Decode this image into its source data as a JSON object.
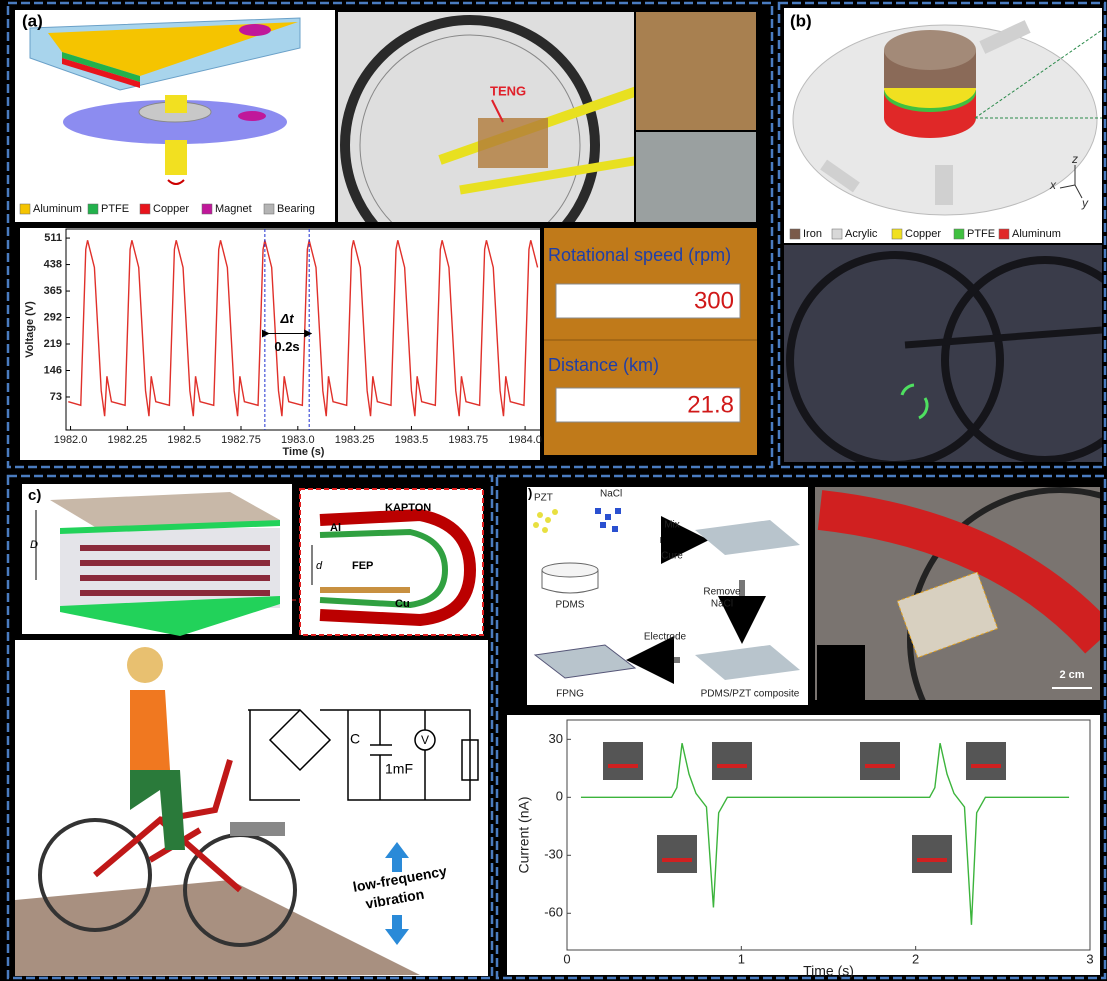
{
  "chart_data": [
    {
      "type": "line",
      "xlabel": "Time (s)",
      "ylabel": "Voltage (V)",
      "color": "#e0302a",
      "x": [
        1981.99,
        1982.045,
        1982.067,
        1982.075,
        1982.105,
        1982.135,
        1982.15,
        1982.16,
        1982.18,
        1982.24,
        1982.262,
        1982.27,
        1982.3,
        1982.33,
        1982.345,
        1982.355,
        1982.375,
        1982.435,
        1982.457,
        1982.465,
        1982.495,
        1982.525,
        1982.54,
        1982.55,
        1982.57,
        1982.63,
        1982.652,
        1982.66,
        1982.69,
        1982.72,
        1982.735,
        1982.745,
        1982.765,
        1982.825,
        1982.847,
        1982.855,
        1982.885,
        1982.915,
        1982.93,
        1982.94,
        1982.96,
        1983.02,
        1983.042,
        1983.05,
        1983.08,
        1983.11,
        1983.125,
        1983.135,
        1983.155,
        1983.215,
        1983.237,
        1983.245,
        1983.275,
        1983.305,
        1983.32,
        1983.33,
        1983.35,
        1983.41,
        1983.432,
        1983.44,
        1983.47,
        1983.5,
        1983.515,
        1983.525,
        1983.545,
        1983.605,
        1983.627,
        1983.635,
        1983.665,
        1983.695,
        1983.71,
        1983.72,
        1983.74,
        1983.8,
        1983.822,
        1983.83,
        1983.86,
        1983.89,
        1983.905,
        1983.915,
        1983.935,
        1983.995,
        1984.017,
        1984.025,
        1984.055
      ],
      "values": [
        60,
        50,
        480,
        505,
        430,
        90,
        20,
        130,
        60,
        50,
        480,
        505,
        430,
        90,
        20,
        130,
        60,
        50,
        480,
        505,
        430,
        90,
        20,
        130,
        60,
        50,
        480,
        505,
        430,
        90,
        20,
        130,
        60,
        50,
        480,
        505,
        430,
        90,
        20,
        130,
        60,
        50,
        480,
        505,
        430,
        90,
        20,
        130,
        60,
        50,
        480,
        505,
        430,
        90,
        20,
        130,
        60,
        50,
        480,
        505,
        430,
        90,
        20,
        130,
        60,
        50,
        480,
        505,
        430,
        90,
        20,
        130,
        60,
        50,
        480,
        505,
        430,
        90,
        20,
        130,
        60,
        50,
        480,
        505,
        430
      ],
      "xlim": [
        1981.98,
        1984.07
      ],
      "ylim": [
        -18,
        536
      ],
      "xticks": [
        {
          "value": 1982,
          "label": "1982.0"
        },
        1982.25,
        1982.5,
        1982.75,
        {
          "value": 1983,
          "label": "1983.0"
        },
        1983.25,
        1983.5,
        1983.75,
        {
          "value": 1984,
          "label": "1984.0"
        }
      ],
      "yticks": [
        73,
        146,
        219,
        292,
        365,
        438,
        511
      ],
      "markers": [
        1982.855,
        1983.05
      ],
      "annotations": [
        "Δt",
        "0.2s"
      ]
    },
    {
      "type": "line",
      "xlabel": "Time (s)",
      "ylabel": "Current (nA)",
      "color": "#3cb43c",
      "x": [
        0.08,
        0.6,
        0.63,
        0.66,
        0.7,
        0.74,
        0.8,
        0.84,
        0.87,
        0.92,
        2.08,
        2.11,
        2.14,
        2.18,
        2.22,
        2.28,
        2.32,
        2.35,
        2.4,
        2.88
      ],
      "values": [
        0,
        0,
        5,
        28,
        12,
        2,
        -5,
        -57,
        -8,
        0,
        0,
        5,
        28,
        12,
        2,
        -5,
        -66,
        -8,
        0,
        0
      ],
      "xlim": [
        0,
        3
      ],
      "ylim": [
        -79,
        40
      ],
      "xticks": [
        0,
        1,
        2,
        3
      ],
      "yticks": [
        -60,
        -30,
        0,
        30
      ]
    }
  ],
  "panel_a": {
    "label": "(a)",
    "legend": [
      {
        "name": "Aluminum",
        "color": "#f5c400"
      },
      {
        "name": "PTFE",
        "color": "#22b14c"
      },
      {
        "name": "Copper",
        "color": "#e8141c"
      },
      {
        "name": "Magnet",
        "color": "#c0189a"
      },
      {
        "name": "Bearing",
        "color": "#b4b4b4"
      }
    ],
    "photo_label": "TENG",
    "display": {
      "speed_label": "Rotational speed (rpm)",
      "speed": 300,
      "distance_label": "Distance (km)",
      "distance": 21.8
    }
  },
  "panel_b": {
    "label": "(b)",
    "axes": [
      "z",
      "x",
      "y"
    ],
    "legend": [
      {
        "name": "Iron",
        "color": "#7a5a4a"
      },
      {
        "name": "Acrylic",
        "color": "#d8d8d8"
      },
      {
        "name": "Copper",
        "color": "#f0e020"
      },
      {
        "name": "PTFE",
        "color": "#40c040"
      },
      {
        "name": "Aluminum",
        "color": "#e02828"
      }
    ]
  },
  "panel_c": {
    "label": "c)",
    "layers": [
      "KAPTON",
      "Al",
      "FEP",
      "Cu"
    ],
    "gap": "d",
    "height": "D",
    "circuit": {
      "capacitor": "C",
      "capacitance": "1mF",
      "meter": "V"
    },
    "arrow_text": [
      "low-frequency",
      "vibration"
    ]
  },
  "panel_d": {
    "label": ")",
    "materials": [
      "PZT",
      "NaCl"
    ],
    "steps": [
      "Mix",
      "Cure",
      "Remove",
      "NaCl",
      "Electrode"
    ],
    "products": [
      "PDMS",
      "PDMS/PZT composite",
      "FPNG"
    ],
    "scale": "2 cm"
  }
}
